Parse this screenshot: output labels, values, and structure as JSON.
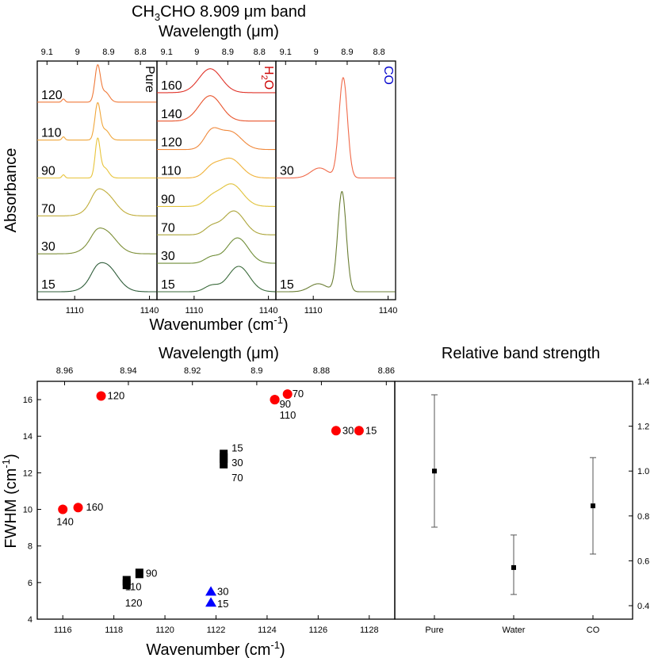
{
  "chart_data": [
    {
      "type": "line",
      "title": "CH3CHO 8.909 μm band",
      "title_main": "CH",
      "title_sub1": "3",
      "title_mid": "CHO 8.909 μm band",
      "top_axis_label": "Wavelength (μm)",
      "top_ticks": [
        "9.1",
        "9",
        "8.9",
        "8.8"
      ],
      "top_tick_values": [
        9.1,
        9.0,
        8.9,
        8.8
      ],
      "xlabel": "Wavenumber (cm",
      "xlabel_sup": "-1",
      "xlabel_close": ")",
      "ylabel": "Absorbance",
      "x_ticks": [
        "1110",
        "1140"
      ],
      "x_tick_values": [
        1110,
        1140
      ],
      "xlim": [
        1095,
        1143
      ],
      "panels": [
        {
          "label": "Pure",
          "label_color": "#000000",
          "traces": [
            {
              "temp": "120",
              "color": "#f07a3a",
              "peak": 1119.2,
              "width": 1.1,
              "height": 0.9,
              "shoulder": 1122.3,
              "sh_height": 0.25,
              "sh_width": 1.6,
              "side": 1105.5,
              "side_height": 0.08
            },
            {
              "temp": "110",
              "color": "#f0a63a",
              "peak": 1119.2,
              "width": 1.1,
              "height": 0.9,
              "shoulder": 1122.3,
              "sh_height": 0.25,
              "sh_width": 1.6,
              "side": 1105.5,
              "side_height": 0.08
            },
            {
              "temp": "90",
              "color": "#e8c43a",
              "peak": 1119.2,
              "width": 1.0,
              "height": 0.95,
              "shoulder": 1122.0,
              "sh_height": 0.25,
              "sh_width": 1.6,
              "side": 1105.5,
              "side_height": 0.08
            },
            {
              "temp": "70",
              "color": "#c0ad3a",
              "peak": 1121.5,
              "width": 4.5,
              "height": 0.6,
              "shoulder": 1118.5,
              "sh_height": 0.15,
              "sh_width": 2.0
            },
            {
              "temp": "30",
              "color": "#7d8f37",
              "peak": 1121.5,
              "width": 4.8,
              "height": 0.6,
              "shoulder": 1118.5,
              "sh_height": 0.1,
              "sh_width": 2.0
            },
            {
              "temp": "15",
              "color": "#2f5d3a",
              "peak": 1122.0,
              "width": 4.8,
              "height": 0.7,
              "shoulder": 1118.5,
              "sh_height": 0.1,
              "sh_width": 2.0
            }
          ]
        },
        {
          "label": "H2O",
          "label_main": "H",
          "label_sub": "2",
          "label_end": "O",
          "label_color": "#cc0000",
          "traces": [
            {
              "temp": "160",
              "color": "#e0342a",
              "peak": 1116.5,
              "width": 4.5,
              "height": 0.8
            },
            {
              "temp": "140",
              "color": "#e8542c",
              "peak": 1116.5,
              "width": 4.5,
              "height": 0.85
            },
            {
              "temp": "120",
              "color": "#f0883a",
              "peak": 1117.0,
              "width": 3.0,
              "height": 0.55,
              "shoulder": 1124.5,
              "sh_height": 0.6,
              "sh_width": 4.5
            },
            {
              "temp": "110",
              "color": "#f0b23a",
              "peak": 1117.0,
              "width": 3.0,
              "height": 0.3,
              "shoulder": 1124.5,
              "sh_height": 0.65,
              "sh_width": 4.5
            },
            {
              "temp": "90",
              "color": "#e0c23a",
              "peak": 1117.0,
              "width": 3.0,
              "height": 0.25,
              "shoulder": 1125.0,
              "sh_height": 0.75,
              "sh_width": 4.5
            },
            {
              "temp": "70",
              "color": "#aca53a",
              "peak": 1117.0,
              "width": 2.8,
              "height": 0.25,
              "shoulder": 1126.0,
              "sh_height": 0.8,
              "sh_width": 4.3
            },
            {
              "temp": "30",
              "color": "#6f8d37",
              "peak": 1117.0,
              "width": 2.8,
              "height": 0.2,
              "shoulder": 1127.5,
              "sh_height": 0.85,
              "sh_width": 4.3
            },
            {
              "temp": "15",
              "color": "#3a6a3a",
              "peak": 1117.0,
              "width": 2.8,
              "height": 0.2,
              "shoulder": 1128.0,
              "sh_height": 0.85,
              "sh_width": 4.3
            }
          ]
        },
        {
          "label": "CO",
          "label_color": "#0000cc",
          "traces": [
            {
              "temp": "30",
              "color": "#f06a4a",
              "peak": 1122.0,
              "width": 1.7,
              "height": 1.0,
              "shoulder": 1112.5,
              "sh_height": 0.1,
              "sh_width": 3.5
            },
            {
              "temp": "15",
              "color": "#6a7d33",
              "peak": 1121.5,
              "width": 1.7,
              "height": 1.0,
              "shoulder": 1112.0,
              "sh_height": 0.08,
              "sh_width": 3.5
            }
          ]
        }
      ]
    },
    {
      "type": "scatter",
      "top_axis_label": "Wavelength (μm)",
      "top_ticks": [
        "8.96",
        "8.94",
        "8.92",
        "8.9",
        "8.88",
        "8.86"
      ],
      "top_tick_values": [
        8.96,
        8.94,
        8.92,
        8.9,
        8.88,
        8.86
      ],
      "xlabel": "Wavenumber (cm",
      "xlabel_sup": "-1",
      "xlabel_close": ")",
      "ylabel": "FWHM (cm",
      "ylabel_sup": "-1",
      "ylabel_close": ")",
      "xlim": [
        1115,
        1129
      ],
      "ylim": [
        4,
        17
      ],
      "x_ticks": [
        "1116",
        "1118",
        "1120",
        "1122",
        "1124",
        "1126",
        "1128"
      ],
      "x_tick_values": [
        1116,
        1118,
        1120,
        1122,
        1124,
        1126,
        1128
      ],
      "y_ticks": [
        "4",
        "6",
        "8",
        "10",
        "12",
        "14",
        "16"
      ],
      "y_tick_values": [
        4,
        6,
        8,
        10,
        12,
        14,
        16
      ],
      "series": [
        {
          "marker": "circle",
          "color": "#ff0000",
          "points": [
            {
              "x": 1117.5,
              "y": 16.2,
              "label": "120",
              "lx": 6,
              "ly": 4
            },
            {
              "x": 1124.3,
              "y": 16.0,
              "label": "90",
              "lx": 4,
              "ly": 10
            },
            {
              "x": 1124.3,
              "y": 16.0,
              "label": "110",
              "lx": 4,
              "ly": 24
            },
            {
              "x": 1124.8,
              "y": 16.3,
              "label": "70",
              "lx": 4,
              "ly": 4
            },
            {
              "x": 1126.7,
              "y": 14.3,
              "label": "30",
              "lx": 6,
              "ly": 4
            },
            {
              "x": 1127.6,
              "y": 14.3,
              "label": "15",
              "lx": 6,
              "ly": 4
            },
            {
              "x": 1116.0,
              "y": 10.0,
              "label": "140",
              "lx": -10,
              "ly": 20
            },
            {
              "x": 1116.6,
              "y": 10.1,
              "label": "160",
              "lx": 8,
              "ly": 4
            }
          ]
        },
        {
          "marker": "square",
          "color": "#000000",
          "points": [
            {
              "x": 1122.3,
              "y": 13.0,
              "label": "15",
              "lx": 8,
              "ly": -4
            },
            {
              "x": 1122.3,
              "y": 12.8,
              "label": "30",
              "lx": 8,
              "ly": 10
            },
            {
              "x": 1122.3,
              "y": 12.5,
              "label": "70",
              "lx": 8,
              "ly": 22
            },
            {
              "x": 1119.0,
              "y": 6.5,
              "label": "90",
              "lx": 6,
              "ly": 4
            },
            {
              "x": 1118.5,
              "y": 6.1,
              "label": "110",
              "lx": -4,
              "ly": 12
            },
            {
              "x": 1118.5,
              "y": 5.9,
              "label": "120",
              "lx": -4,
              "ly": 28
            }
          ]
        },
        {
          "marker": "triangle",
          "color": "#0000ff",
          "points": [
            {
              "x": 1121.8,
              "y": 5.5,
              "label": "30",
              "lx": 6,
              "ly": 4
            },
            {
              "x": 1121.8,
              "y": 4.9,
              "label": "15",
              "lx": 6,
              "ly": 6
            }
          ]
        }
      ]
    },
    {
      "type": "scatter",
      "title": "Relative band strength",
      "categories": [
        "Pure",
        "Water",
        "CO"
      ],
      "values": [
        1.0,
        0.57,
        0.845
      ],
      "err_low": [
        0.75,
        0.45,
        0.63
      ],
      "err_high": [
        1.34,
        0.715,
        1.06
      ],
      "ylim": [
        0.34,
        1.4
      ],
      "y_ticks": [
        "0.4",
        "0.6",
        "0.8",
        "1.0",
        "1.2",
        "1.4"
      ],
      "y_tick_values": [
        0.4,
        0.6,
        0.8,
        1.0,
        1.2,
        1.4
      ]
    }
  ]
}
